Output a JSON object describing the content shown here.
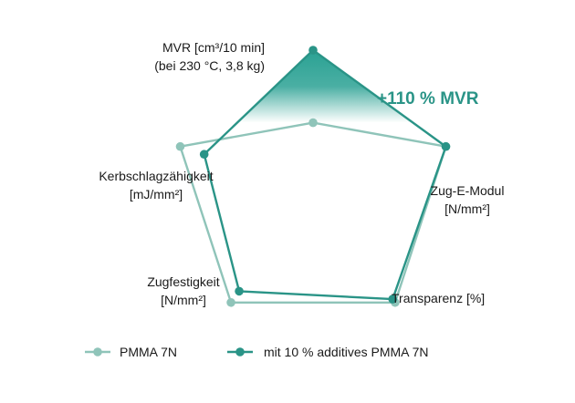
{
  "chart_data": {
    "type": "radar",
    "axes": [
      {
        "label_lines": [
          "MVR [cm³/10 min]",
          "(bei 230 °C, 3,8 kg)"
        ]
      },
      {
        "label_lines": [
          "Zug-E-Modul",
          "[N/mm²]"
        ]
      },
      {
        "label_lines": [
          "Transparenz [%]"
        ]
      },
      {
        "label_lines": [
          "Zugfestigkeit",
          "[N/mm²]"
        ]
      },
      {
        "label_lines": [
          "Kerbschlagzähigkeit",
          "[mJ/mm²]"
        ]
      }
    ],
    "series": [
      {
        "name": "PMMA 7N",
        "values": [
          0.48,
          1.0,
          1.0,
          1.0,
          1.0
        ],
        "color": "#8fc4b9"
      },
      {
        "name": "mit 10 % additives PMMA 7N",
        "values": [
          1.0,
          1.0,
          0.97,
          0.9,
          0.82
        ],
        "color": "#2a9487"
      }
    ],
    "annotation": {
      "text": "+110 % MVR",
      "color": "#2a9487"
    },
    "legend_position": "bottom"
  }
}
